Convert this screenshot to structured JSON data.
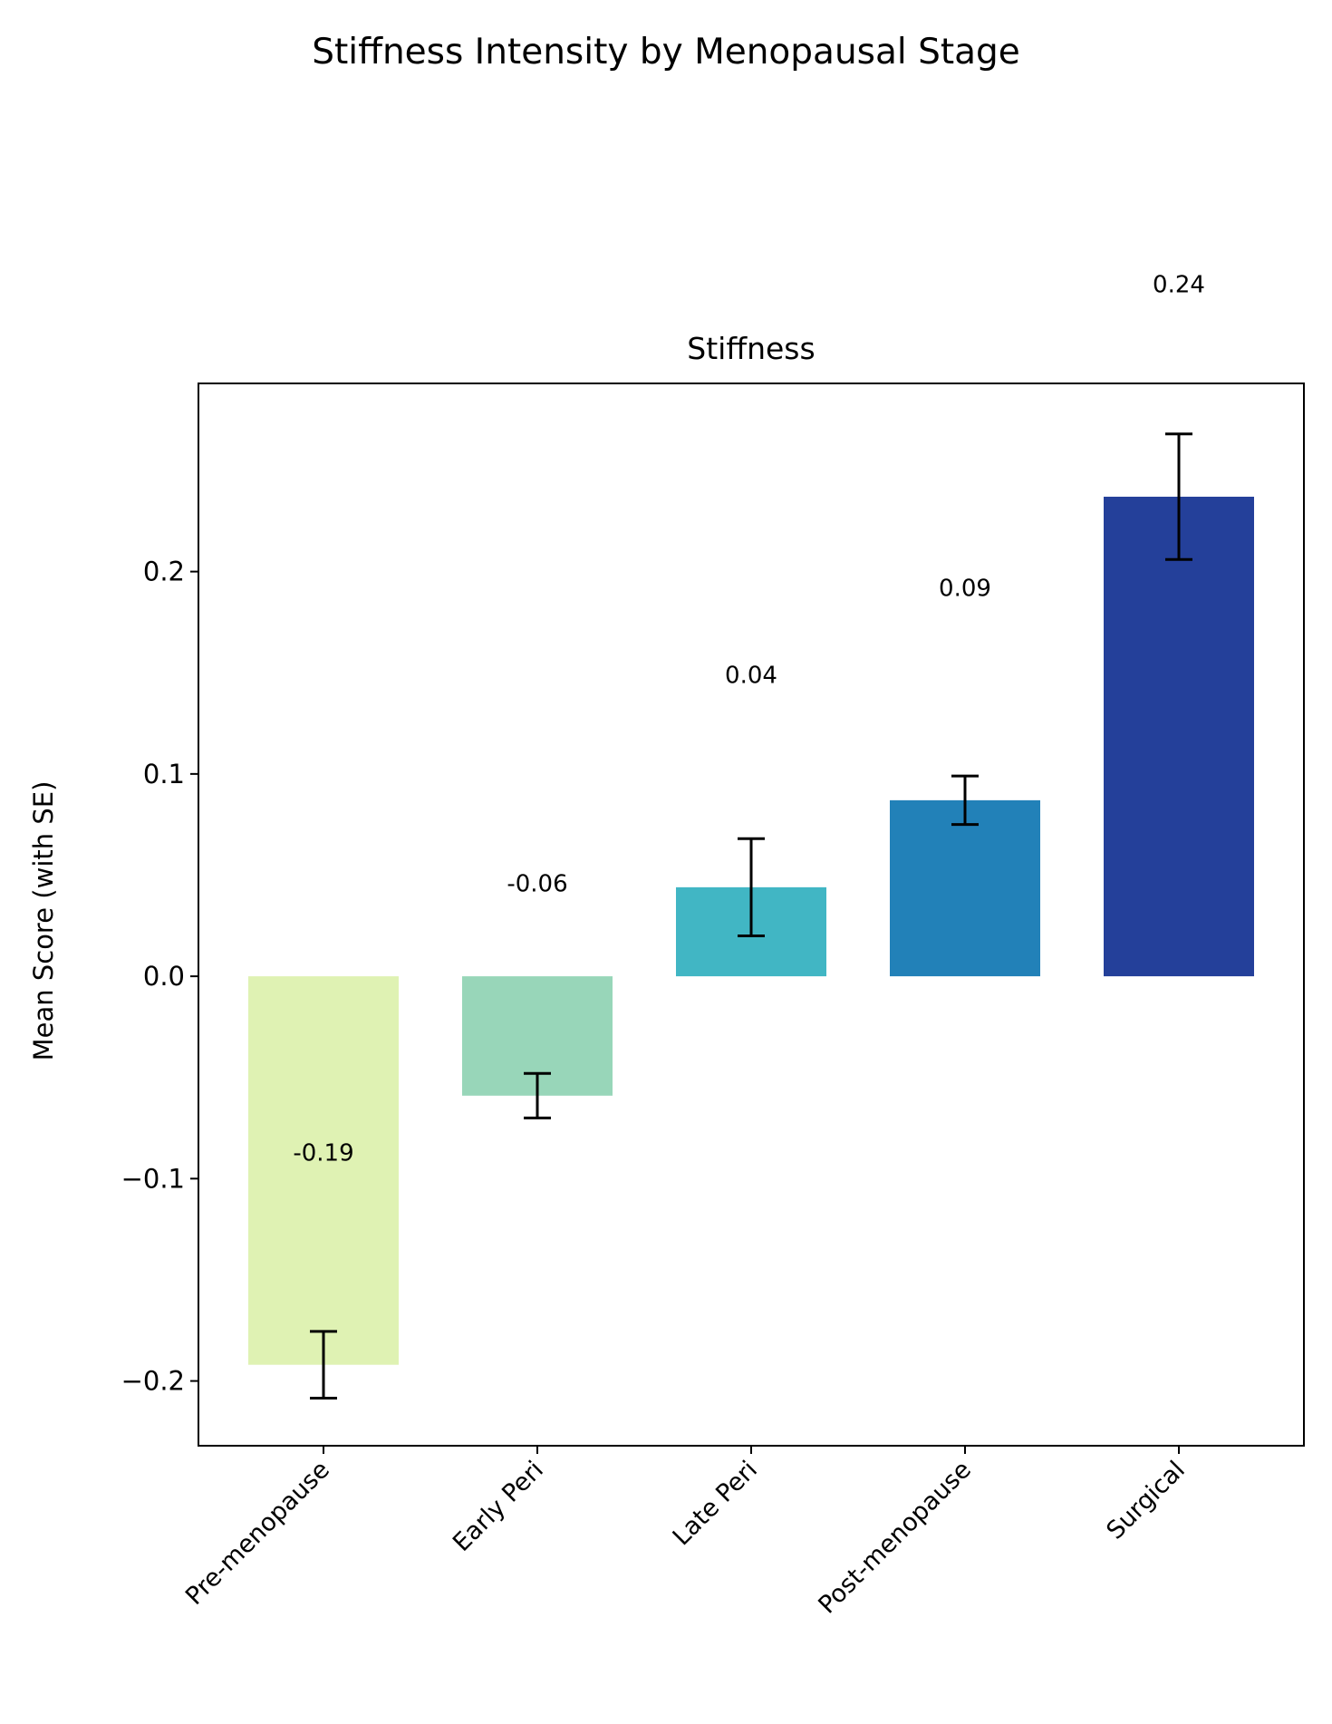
{
  "figure": {
    "title": "Stiffness Intensity by Menopausal Stage"
  },
  "chart_data": {
    "type": "bar",
    "title": "Stiffness",
    "xlabel": "",
    "ylabel": "Mean Score (with SE)",
    "categories": [
      "Pre-menopause",
      "Early Peri",
      "Late Peri",
      "Post-menopause",
      "Surgical"
    ],
    "values": [
      -0.192,
      -0.059,
      0.044,
      0.087,
      0.237
    ],
    "errors": [
      0.0165,
      0.011,
      0.024,
      0.012,
      0.031
    ],
    "value_labels": [
      "-0.19",
      "-0.06",
      "0.04",
      "0.09",
      "0.24"
    ],
    "colors": [
      "#dff2b3",
      "#98d6b9",
      "#41b6c4",
      "#2281b8",
      "#24409a"
    ],
    "ylim": [
      -0.232,
      0.293
    ],
    "yticks": [
      -0.2,
      -0.1,
      0.0,
      0.1,
      0.2
    ],
    "ytick_labels": [
      "−0.2",
      "−0.1",
      "0.0",
      "0.1",
      "0.2"
    ],
    "grid": false,
    "legend": "none"
  }
}
